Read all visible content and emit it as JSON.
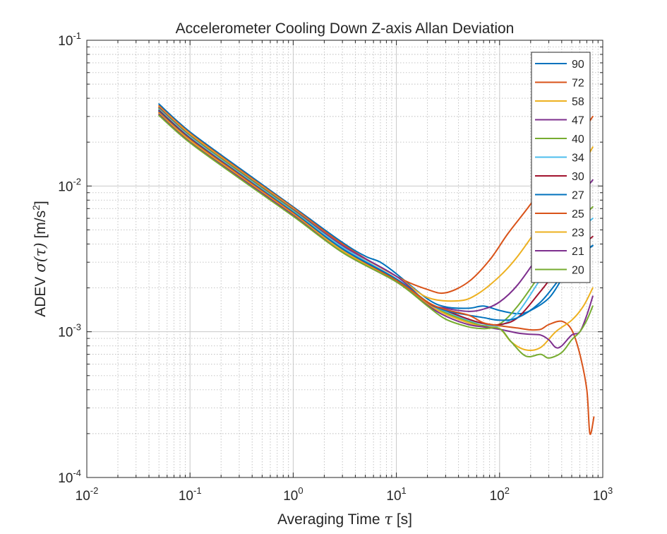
{
  "chart_data": {
    "type": "line",
    "title": "Accelerometer Cooling Down Z-axis Allan Deviation",
    "xlabel": {
      "text": "Averaging Time ",
      "symbol": "τ",
      "unit": " [s]"
    },
    "ylabel": {
      "text": "ADEV ",
      "symbol": "σ(τ)",
      "unit": " [m/s",
      "unit_exp": "2",
      "unit_end": "]"
    },
    "xscale": "log",
    "yscale": "log",
    "xlim": [
      0.01,
      1000
    ],
    "ylim": [
      0.0001,
      0.1
    ],
    "grid": true,
    "minor_grid": true,
    "legend_position": "top-right",
    "x_ticks": [
      {
        "value": 0.01,
        "base": "10",
        "exp": "-2"
      },
      {
        "value": 0.1,
        "base": "10",
        "exp": "-1"
      },
      {
        "value": 1,
        "base": "10",
        "exp": "0"
      },
      {
        "value": 10,
        "base": "10",
        "exp": "1"
      },
      {
        "value": 100,
        "base": "10",
        "exp": "2"
      },
      {
        "value": 1000,
        "base": "10",
        "exp": "3"
      }
    ],
    "y_ticks": [
      {
        "value": 0.0001,
        "base": "10",
        "exp": "-4"
      },
      {
        "value": 0.001,
        "base": "10",
        "exp": "-3"
      },
      {
        "value": 0.01,
        "base": "10",
        "exp": "-2"
      },
      {
        "value": 0.1,
        "base": "10",
        "exp": "-1"
      }
    ],
    "series": [
      {
        "name": "90",
        "color": "#0072BD",
        "points": [
          [
            0.05,
            0.0365
          ],
          [
            0.1,
            0.0235
          ],
          [
            0.3,
            0.0133
          ],
          [
            1,
            0.0072
          ],
          [
            3,
            0.0041
          ],
          [
            5,
            0.0033
          ],
          [
            7,
            0.003
          ],
          [
            10,
            0.0025
          ],
          [
            20,
            0.00168
          ],
          [
            30,
            0.00148
          ],
          [
            50,
            0.00145
          ],
          [
            70,
            0.0015
          ],
          [
            100,
            0.0014
          ],
          [
            150,
            0.00133
          ],
          [
            200,
            0.0014
          ],
          [
            300,
            0.0017
          ],
          [
            400,
            0.0023
          ],
          [
            500,
            0.0031
          ],
          [
            700,
            0.0037
          ],
          [
            800,
            0.0039
          ]
        ]
      },
      {
        "name": "72",
        "color": "#D95319",
        "points": [
          [
            0.05,
            0.0355
          ],
          [
            0.1,
            0.023
          ],
          [
            0.3,
            0.013
          ],
          [
            1,
            0.0071
          ],
          [
            3,
            0.004
          ],
          [
            10,
            0.0024
          ],
          [
            20,
            0.00195
          ],
          [
            30,
            0.00185
          ],
          [
            50,
            0.0022
          ],
          [
            80,
            0.0031
          ],
          [
            120,
            0.0047
          ],
          [
            180,
            0.0068
          ],
          [
            250,
            0.0093
          ],
          [
            400,
            0.0145
          ],
          [
            600,
            0.022
          ],
          [
            800,
            0.03
          ]
        ]
      },
      {
        "name": "58",
        "color": "#EDB120",
        "points": [
          [
            0.05,
            0.035
          ],
          [
            0.1,
            0.0227
          ],
          [
            0.3,
            0.0128
          ],
          [
            1,
            0.007
          ],
          [
            3,
            0.0039
          ],
          [
            10,
            0.0024
          ],
          [
            20,
            0.00172
          ],
          [
            40,
            0.00163
          ],
          [
            60,
            0.0018
          ],
          [
            100,
            0.0024
          ],
          [
            150,
            0.0033
          ],
          [
            250,
            0.0055
          ],
          [
            400,
            0.0089
          ],
          [
            600,
            0.013
          ],
          [
            800,
            0.0185
          ]
        ]
      },
      {
        "name": "47",
        "color": "#7E2F8E",
        "points": [
          [
            0.05,
            0.0345
          ],
          [
            0.1,
            0.0222
          ],
          [
            0.3,
            0.0126
          ],
          [
            1,
            0.0069
          ],
          [
            3,
            0.0039
          ],
          [
            10,
            0.0024
          ],
          [
            20,
            0.00158
          ],
          [
            30,
            0.00145
          ],
          [
            50,
            0.00138
          ],
          [
            70,
            0.00143
          ],
          [
            100,
            0.0016
          ],
          [
            150,
            0.0021
          ],
          [
            250,
            0.0035
          ],
          [
            400,
            0.0058
          ],
          [
            600,
            0.0085
          ],
          [
            800,
            0.011
          ]
        ]
      },
      {
        "name": "40",
        "color": "#77AC30",
        "points": [
          [
            0.05,
            0.034
          ],
          [
            0.1,
            0.022
          ],
          [
            0.3,
            0.0125
          ],
          [
            1,
            0.0068
          ],
          [
            3,
            0.0038
          ],
          [
            10,
            0.0023
          ],
          [
            20,
            0.0016
          ],
          [
            30,
            0.00135
          ],
          [
            50,
            0.00118
          ],
          [
            70,
            0.0011
          ],
          [
            100,
            0.00113
          ],
          [
            150,
            0.0015
          ],
          [
            250,
            0.0025
          ],
          [
            400,
            0.004
          ],
          [
            600,
            0.0058
          ],
          [
            800,
            0.0072
          ]
        ]
      },
      {
        "name": "34",
        "color": "#4DBEEE",
        "points": [
          [
            0.05,
            0.0335
          ],
          [
            0.1,
            0.0217
          ],
          [
            0.3,
            0.0123
          ],
          [
            1,
            0.0067
          ],
          [
            3,
            0.0038
          ],
          [
            10,
            0.0023
          ],
          [
            20,
            0.00158
          ],
          [
            30,
            0.00138
          ],
          [
            50,
            0.0012
          ],
          [
            70,
            0.00113
          ],
          [
            100,
            0.0011
          ],
          [
            150,
            0.00135
          ],
          [
            250,
            0.0023
          ],
          [
            400,
            0.0036
          ],
          [
            600,
            0.005
          ],
          [
            800,
            0.006
          ]
        ]
      },
      {
        "name": "30",
        "color": "#A2142F",
        "points": [
          [
            0.05,
            0.033
          ],
          [
            0.1,
            0.0213
          ],
          [
            0.3,
            0.0121
          ],
          [
            1,
            0.0066
          ],
          [
            3,
            0.0037
          ],
          [
            10,
            0.00228
          ],
          [
            20,
            0.00158
          ],
          [
            30,
            0.0014
          ],
          [
            50,
            0.00122
          ],
          [
            70,
            0.00114
          ],
          [
            100,
            0.00112
          ],
          [
            150,
            0.00125
          ],
          [
            250,
            0.0019
          ],
          [
            400,
            0.0029
          ],
          [
            600,
            0.0038
          ],
          [
            800,
            0.0045
          ]
        ]
      },
      {
        "name": "27",
        "color": "#0072BD",
        "points": [
          [
            0.05,
            0.0325
          ],
          [
            0.1,
            0.021
          ],
          [
            0.3,
            0.012
          ],
          [
            1,
            0.0066
          ],
          [
            3,
            0.0037
          ],
          [
            10,
            0.0023
          ],
          [
            20,
            0.0016
          ],
          [
            30,
            0.0014
          ],
          [
            50,
            0.0013
          ],
          [
            70,
            0.00125
          ],
          [
            100,
            0.0012
          ],
          [
            150,
            0.00125
          ],
          [
            250,
            0.0016
          ],
          [
            400,
            0.0024
          ],
          [
            600,
            0.0033
          ],
          [
            800,
            0.0039
          ]
        ]
      },
      {
        "name": "25",
        "color": "#D95319",
        "points": [
          [
            0.05,
            0.032
          ],
          [
            0.1,
            0.0208
          ],
          [
            0.3,
            0.0119
          ],
          [
            1,
            0.0065
          ],
          [
            3,
            0.0036
          ],
          [
            10,
            0.00225
          ],
          [
            20,
            0.0016
          ],
          [
            30,
            0.00142
          ],
          [
            50,
            0.0013
          ],
          [
            70,
            0.00115
          ],
          [
            100,
            0.0011
          ],
          [
            150,
            0.00106
          ],
          [
            200,
            0.00103
          ],
          [
            250,
            0.00104
          ],
          [
            300,
            0.00112
          ],
          [
            400,
            0.00118
          ],
          [
            500,
            0.00103
          ],
          [
            600,
            0.0007
          ],
          [
            700,
            0.0004
          ],
          [
            750,
            0.0002
          ],
          [
            820,
            0.00026
          ]
        ]
      },
      {
        "name": "23",
        "color": "#EDB120",
        "points": [
          [
            0.05,
            0.0315
          ],
          [
            0.1,
            0.0205
          ],
          [
            0.3,
            0.0117
          ],
          [
            1,
            0.0064
          ],
          [
            3,
            0.0036
          ],
          [
            10,
            0.0022
          ],
          [
            20,
            0.00155
          ],
          [
            30,
            0.00132
          ],
          [
            50,
            0.00115
          ],
          [
            70,
            0.00108
          ],
          [
            100,
            0.00105
          ],
          [
            130,
            0.00085
          ],
          [
            180,
            0.00075
          ],
          [
            250,
            0.00078
          ],
          [
            350,
            0.001
          ],
          [
            500,
            0.0012
          ],
          [
            650,
            0.0015
          ],
          [
            800,
            0.002
          ]
        ]
      },
      {
        "name": "21",
        "color": "#7E2F8E",
        "points": [
          [
            0.05,
            0.031
          ],
          [
            0.1,
            0.02
          ],
          [
            0.3,
            0.0115
          ],
          [
            1,
            0.0063
          ],
          [
            3,
            0.0035
          ],
          [
            10,
            0.0022
          ],
          [
            20,
            0.00152
          ],
          [
            30,
            0.00128
          ],
          [
            50,
            0.00112
          ],
          [
            70,
            0.00108
          ],
          [
            100,
            0.00104
          ],
          [
            150,
            0.00098
          ],
          [
            200,
            0.00096
          ],
          [
            250,
            0.00095
          ],
          [
            300,
            0.00088
          ],
          [
            350,
            0.00078
          ],
          [
            400,
            0.0008
          ],
          [
            500,
            0.00095
          ],
          [
            600,
            0.001
          ],
          [
            700,
            0.0013
          ],
          [
            800,
            0.00175
          ]
        ]
      },
      {
        "name": "20",
        "color": "#77AC30",
        "points": [
          [
            0.05,
            0.0305
          ],
          [
            0.1,
            0.0198
          ],
          [
            0.3,
            0.0113
          ],
          [
            1,
            0.0062
          ],
          [
            3,
            0.0035
          ],
          [
            10,
            0.0022
          ],
          [
            20,
            0.0015
          ],
          [
            30,
            0.00122
          ],
          [
            50,
            0.00108
          ],
          [
            70,
            0.00105
          ],
          [
            100,
            0.00105
          ],
          [
            130,
            0.00085
          ],
          [
            180,
            0.00068
          ],
          [
            250,
            0.0007
          ],
          [
            300,
            0.00066
          ],
          [
            400,
            0.00072
          ],
          [
            500,
            0.00088
          ],
          [
            600,
            0.001
          ],
          [
            700,
            0.0012
          ],
          [
            800,
            0.0015
          ]
        ]
      }
    ]
  }
}
